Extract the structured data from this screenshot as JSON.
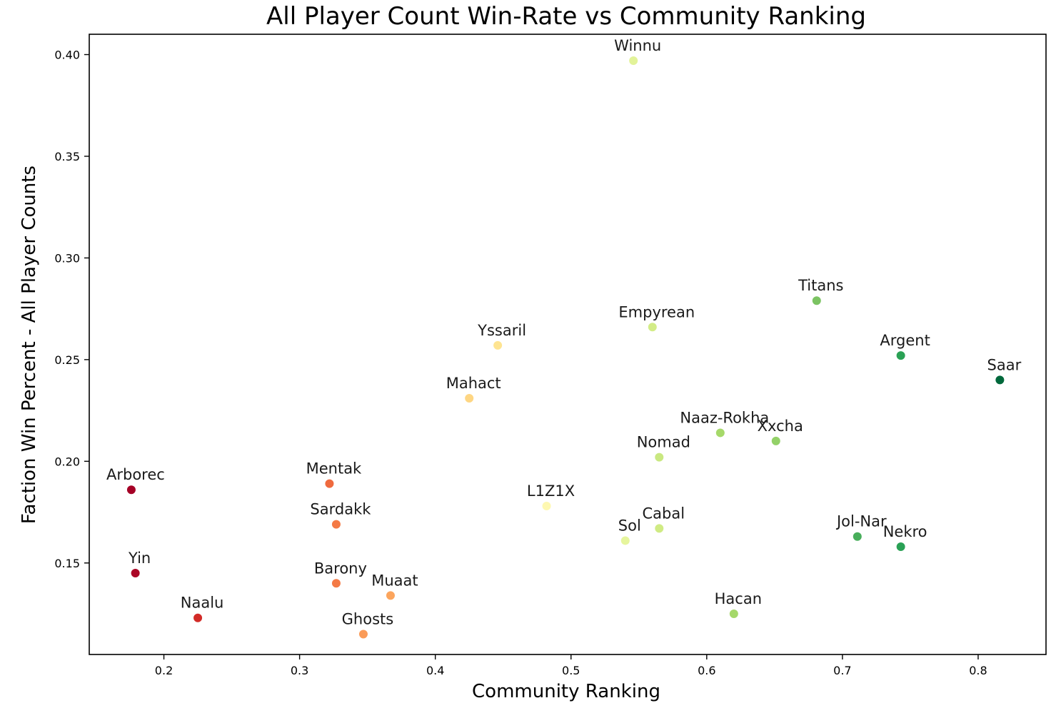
{
  "chart_data": {
    "type": "scatter",
    "title": "All Player Count Win-Rate vs Community Ranking",
    "xlabel": "Community Ranking",
    "ylabel": "Faction Win Percent - All Player Counts",
    "xlim": [
      0.145,
      0.85
    ],
    "ylim": [
      0.105,
      0.41
    ],
    "xticks": [
      0.2,
      0.3,
      0.4,
      0.5,
      0.6,
      0.7,
      0.8
    ],
    "xtick_labels": [
      "0.2",
      "0.3",
      "0.4",
      "0.5",
      "0.6",
      "0.7",
      "0.8"
    ],
    "yticks": [
      0.15,
      0.2,
      0.25,
      0.3,
      0.35,
      0.4
    ],
    "ytick_labels": [
      "0.15",
      "0.20",
      "0.25",
      "0.30",
      "0.35",
      "0.40"
    ],
    "grid": false,
    "colormap": "RdYlGn",
    "points": [
      {
        "label": "Winnu",
        "x": 0.546,
        "y": 0.397,
        "color": "#e2f399"
      },
      {
        "label": "Titans",
        "x": 0.681,
        "y": 0.279,
        "color": "#7bc362"
      },
      {
        "label": "Empyrean",
        "x": 0.56,
        "y": 0.266,
        "color": "#d3ec87"
      },
      {
        "label": "Yssaril",
        "x": 0.446,
        "y": 0.257,
        "color": "#fee491"
      },
      {
        "label": "Argent",
        "x": 0.743,
        "y": 0.252,
        "color": "#2aa155"
      },
      {
        "label": "Saar",
        "x": 0.816,
        "y": 0.24,
        "color": "#00683b"
      },
      {
        "label": "Mahact",
        "x": 0.425,
        "y": 0.231,
        "color": "#fed683"
      },
      {
        "label": "Naaz-Rokha",
        "x": 0.61,
        "y": 0.214,
        "color": "#a6d96a"
      },
      {
        "label": "Xxcha",
        "x": 0.651,
        "y": 0.21,
        "color": "#93d168"
      },
      {
        "label": "Nomad",
        "x": 0.565,
        "y": 0.202,
        "color": "#c9e881"
      },
      {
        "label": "Mentak",
        "x": 0.322,
        "y": 0.189,
        "color": "#ef6a3e"
      },
      {
        "label": "Arborec",
        "x": 0.176,
        "y": 0.186,
        "color": "#a50026"
      },
      {
        "label": "L1Z1X",
        "x": 0.482,
        "y": 0.178,
        "color": "#fef8b1"
      },
      {
        "label": "Sardakk",
        "x": 0.327,
        "y": 0.169,
        "color": "#f47a45"
      },
      {
        "label": "Cabal",
        "x": 0.565,
        "y": 0.167,
        "color": "#d0eb84"
      },
      {
        "label": "Jol-Nar",
        "x": 0.711,
        "y": 0.163,
        "color": "#48ae5b"
      },
      {
        "label": "Sol",
        "x": 0.54,
        "y": 0.161,
        "color": "#e6f59d"
      },
      {
        "label": "Nekro",
        "x": 0.743,
        "y": 0.158,
        "color": "#2aa155"
      },
      {
        "label": "Yin",
        "x": 0.179,
        "y": 0.145,
        "color": "#ab0626"
      },
      {
        "label": "Barony",
        "x": 0.327,
        "y": 0.14,
        "color": "#f47a45"
      },
      {
        "label": "Muaat",
        "x": 0.367,
        "y": 0.134,
        "color": "#fca55d"
      },
      {
        "label": "Hacan",
        "x": 0.62,
        "y": 0.125,
        "color": "#a5d86a"
      },
      {
        "label": "Naalu",
        "x": 0.225,
        "y": 0.123,
        "color": "#d22b27"
      },
      {
        "label": "Ghosts",
        "x": 0.347,
        "y": 0.115,
        "color": "#fa9b58"
      }
    ]
  }
}
